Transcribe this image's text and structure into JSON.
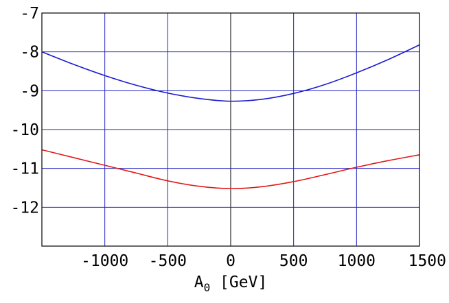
{
  "chart_data": {
    "type": "line",
    "title": "",
    "xlabel": "A",
    "xlabel_subscript": "0",
    "xlabel_unit": " [GeV]",
    "ylabel": "",
    "xlim": [
      -1500,
      1500
    ],
    "ylim": [
      -13,
      -7
    ],
    "x_ticks": [
      -1000,
      -500,
      0,
      500,
      1000,
      1500
    ],
    "x_tick_labels": [
      "-1000",
      "-500",
      "0",
      "500",
      "1000",
      "1500"
    ],
    "y_ticks": [
      -7,
      -8,
      -9,
      -10,
      -11,
      -12
    ],
    "y_tick_labels": [
      "-7",
      "-8",
      "-9",
      "-10",
      "-11",
      "-12"
    ],
    "grid": true,
    "grid_color": "#2020c0",
    "zero_line_color": "#000000",
    "x": [
      -1500,
      -1250,
      -1000,
      -750,
      -500,
      -250,
      0,
      250,
      500,
      750,
      1000,
      1250,
      1500
    ],
    "series": [
      {
        "color": "#1a1ad0",
        "values": [
          -8.0,
          -8.32,
          -8.61,
          -8.86,
          -9.06,
          -9.2,
          -9.27,
          -9.22,
          -9.07,
          -8.84,
          -8.54,
          -8.2,
          -7.82
        ]
      },
      {
        "color": "#e01818",
        "values": [
          -10.52,
          -10.72,
          -10.92,
          -11.12,
          -11.32,
          -11.46,
          -11.52,
          -11.47,
          -11.34,
          -11.16,
          -10.97,
          -10.8,
          -10.65
        ]
      }
    ]
  }
}
